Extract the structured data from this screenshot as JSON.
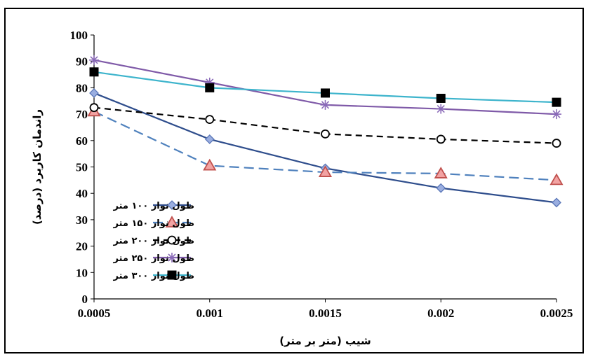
{
  "chart_data": {
    "type": "line",
    "title": "",
    "xlabel": "شیب (متر بر متر)",
    "ylabel": "راندمان کاربرد (درصد)",
    "x": [
      0.0005,
      0.001,
      0.0015,
      0.002,
      0.0025
    ],
    "x_tick_labels": [
      "0.0005",
      "0.001",
      "0.0015",
      "0.002",
      "0.0025"
    ],
    "y_tick_labels": [
      "0",
      "10",
      "20",
      "30",
      "40",
      "50",
      "60",
      "70",
      "80",
      "90",
      "100"
    ],
    "ylim": [
      0,
      100
    ],
    "grid": false,
    "legend_position": "left-lower",
    "series": [
      {
        "name": "طول نوار ۱۰۰ متر",
        "values": [
          78,
          60.5,
          49.5,
          42,
          36.5
        ],
        "color": "#2e4d8c",
        "dash": "solid",
        "marker": "diamond",
        "marker_fill": "#9aaee0",
        "marker_stroke": "#5b77b8"
      },
      {
        "name": "طول نوار ۱۵۰ متر",
        "values": [
          71,
          50.5,
          48,
          47.5,
          45
        ],
        "color": "#4f81bd",
        "dash": "dashed",
        "marker": "triangle",
        "marker_fill": "#f2a3a3",
        "marker_stroke": "#c0504d"
      },
      {
        "name": "طول نوار ۲۰۰ متر",
        "values": [
          72.5,
          68,
          62.5,
          60.5,
          59
        ],
        "color": "#000000",
        "dash": "dashed",
        "marker": "circle",
        "marker_fill": "#ffffff",
        "marker_stroke": "#000000"
      },
      {
        "name": "طول نوار ۲۵۰ متر",
        "values": [
          90.5,
          82,
          73.5,
          72,
          70
        ],
        "color": "#7f5aa8",
        "dash": "solid",
        "marker": "star",
        "marker_fill": "none",
        "marker_stroke": "#8a6ab8"
      },
      {
        "name": "طول نوار ۳۰۰ متر",
        "values": [
          86,
          80,
          78,
          76,
          74.5
        ],
        "color": "#3db4cc",
        "dash": "solid",
        "marker": "square",
        "marker_fill": "#000000",
        "marker_stroke": "#000000"
      }
    ]
  }
}
